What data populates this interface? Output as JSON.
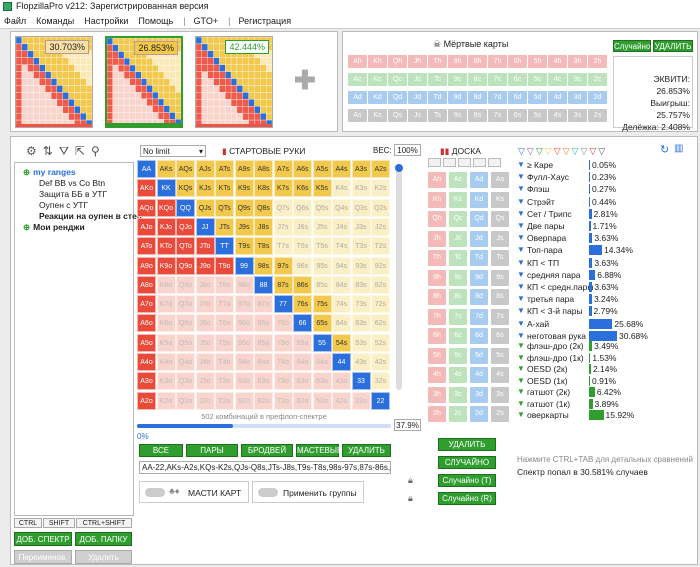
{
  "window": {
    "title": "FlopzillaPro v212: Зарегистрированная версия"
  },
  "menu": [
    "Файл",
    "Команды",
    "Настройки",
    "Помощь",
    "|",
    "GTO+",
    "|",
    "Регистрация"
  ],
  "mini_ranges": [
    {
      "pct": "30.703%",
      "fill": 0.307
    },
    {
      "pct": "26.853%",
      "fill": 0.269
    },
    {
      "pct": "42.444%",
      "fill": 0.424
    }
  ],
  "dead_cards": {
    "title": "Мёртвые карты",
    "random_label": "Случайно",
    "delete_label": "УДАЛИТЬ",
    "ranks": [
      "A",
      "K",
      "Q",
      "J",
      "T",
      "9",
      "8",
      "7",
      "6",
      "5",
      "4",
      "3",
      "2"
    ],
    "suits": [
      "h",
      "c",
      "d",
      "s"
    ]
  },
  "equity": {
    "ev_label": "ЭКВИТИ: 26.853%",
    "win_label": "Выигрыш: 25.757%",
    "split_label": "Делёжка: 2.408%"
  },
  "toolbar_icons": [
    "gear-icon",
    "sort-icon",
    "filter-icon",
    "export-icon",
    "search-icon"
  ],
  "tree": {
    "items": [
      {
        "label": "my ranges",
        "style": "root"
      },
      {
        "label": "Def BB vs Co Btn",
        "style": "child"
      },
      {
        "label": "Защита ББ в УТГ",
        "style": "child"
      },
      {
        "label": "Оупен с УТГ",
        "style": "child"
      },
      {
        "label": "Реакции на оупен в степ",
        "style": "bold"
      },
      {
        "label": "Мои ренджи",
        "style": "root2"
      }
    ],
    "tabs": [
      "CTRL",
      "SHIFT",
      "CTRL+SHIFT"
    ],
    "add_spectrum": "ДОБ. СПЕКТР",
    "add_folder": "ДОБ. ПАПКУ",
    "rename": "Переименов.",
    "delete": "Удалить"
  },
  "matrix": {
    "limit": "No limit",
    "title": "СТАРТОВЫЕ РУКИ",
    "weight_label": "ВЕС:",
    "weight_value": "100%",
    "combos_label": "502 комбинаций в префлоп-спектре",
    "slider_value": "37.9%",
    "zero_label": "0%",
    "ranks": [
      "A",
      "K",
      "Q",
      "J",
      "T",
      "9",
      "8",
      "7",
      "6",
      "5",
      "4",
      "3",
      "2"
    ],
    "selected": [
      "AA",
      "AKs",
      "AQs",
      "AJs",
      "ATs",
      "A9s",
      "A8s",
      "A7s",
      "A6s",
      "A5s",
      "A4s",
      "A3s",
      "A2s",
      "AKo",
      "KK",
      "KQs",
      "KJs",
      "KTs",
      "K9s",
      "K8s",
      "K7s",
      "K6s",
      "K5s",
      "AQo",
      "KQo",
      "QQ",
      "QJs",
      "QTs",
      "Q9s",
      "Q8s",
      "AJo",
      "KJo",
      "QJo",
      "JJ",
      "JTs",
      "J9s",
      "J8s",
      "ATo",
      "KTo",
      "QTo",
      "JTo",
      "TT",
      "T9s",
      "T8s",
      "A9o",
      "K9o",
      "Q9o",
      "J9o",
      "T9o",
      "99",
      "98s",
      "97s",
      "A8o",
      "88",
      "87s",
      "86s",
      "A7o",
      "77",
      "76s",
      "75s",
      "A6o",
      "66",
      "65s",
      "A5o",
      "55",
      "54s",
      "A4o",
      "44",
      "A3o",
      "33",
      "A2o",
      "22"
    ],
    "pairs_blue": [
      "AA",
      "KK",
      "QQ",
      "JJ",
      "TT",
      "99",
      "88",
      "77",
      "66",
      "55",
      "44",
      "33",
      "22"
    ]
  },
  "range_buttons": [
    "ВСЕ",
    "ПАРЫ",
    "БРОДВЕЙ",
    "МАСТЕВЫЕ",
    "УДАЛИТЬ"
  ],
  "range_text": "AA-22,AKs-A2s,KQs-K2s,QJs-Q8s,JTs-J8s,T9s-T8s,98s-97s,87s-86s,",
  "suits_toggle": "МАСТИ КАРТ",
  "groups_toggle": "Применить группы",
  "board": {
    "title": "ДОСКА",
    "delete": "УДАЛИТЬ",
    "random": "СЛУЧАЙНО",
    "random_t": "Случайно (Т)",
    "random_r": "Случайно (R)"
  },
  "stats": [
    {
      "label": "≥ Каре",
      "pct": "0.05%",
      "v": 0.05,
      "color": "#2a6fdb"
    },
    {
      "label": "Фулл-Хаус",
      "pct": "0.23%",
      "v": 0.23,
      "color": "#2a6fdb"
    },
    {
      "label": "Флэш",
      "pct": "0.27%",
      "v": 0.27,
      "color": "#2a6fdb"
    },
    {
      "label": "Стрэйт",
      "pct": "0.44%",
      "v": 0.44,
      "color": "#2a6fdb"
    },
    {
      "label": "Сет / Трипс",
      "pct": "2.81%",
      "v": 2.81,
      "color": "#2a6fdb"
    },
    {
      "label": "Две пары",
      "pct": "1.71%",
      "v": 1.71,
      "color": "#2a6fdb"
    },
    {
      "label": "Оверпара",
      "pct": "3.63%",
      "v": 3.63,
      "color": "#2a6fdb"
    },
    {
      "label": "Топ-пара",
      "pct": "14.34%",
      "v": 14.34,
      "color": "#2a6fdb"
    },
    {
      "label": "КП < ТП",
      "pct": "3.63%",
      "v": 3.63,
      "color": "#2a6fdb"
    },
    {
      "label": "средняя пара",
      "pct": "6.88%",
      "v": 6.88,
      "color": "#2a6fdb"
    },
    {
      "label": "КП < средн.пары",
      "pct": "3.63%",
      "v": 3.63,
      "color": "#2a6fdb"
    },
    {
      "label": "третья пара",
      "pct": "3.24%",
      "v": 3.24,
      "color": "#2a6fdb"
    },
    {
      "label": "КП < 3-й пары",
      "pct": "2.79%",
      "v": 2.79,
      "color": "#2a6fdb"
    },
    {
      "label": "А-хай",
      "pct": "25.68%",
      "v": 25.68,
      "color": "#2a6fdb"
    },
    {
      "label": "неготовая рука",
      "pct": "30.68%",
      "v": 30.68,
      "color": "#2a6fdb"
    },
    {
      "label": "флэш-дро (2к)",
      "pct": "3.49%",
      "v": 3.49,
      "color": "#2f9e2f"
    },
    {
      "label": "флэш-дро (1к)",
      "pct": "1.53%",
      "v": 1.53,
      "color": "#2f9e2f"
    },
    {
      "label": "OESD (2к)",
      "pct": "2.14%",
      "v": 2.14,
      "color": "#2f9e2f"
    },
    {
      "label": "OESD (1к)",
      "pct": "0.91%",
      "v": 0.91,
      "color": "#2f9e2f"
    },
    {
      "label": "гатшот (2к)",
      "pct": "6.42%",
      "v": 6.42,
      "color": "#2f9e2f"
    },
    {
      "label": "гатшот (1к)",
      "pct": "3.89%",
      "v": 3.89,
      "color": "#2f9e2f"
    },
    {
      "label": "оверкарты",
      "pct": "15.92%",
      "v": 15.92,
      "color": "#2f9e2f"
    }
  ],
  "hint": "Нажмите CTRL+TAB для детальных сравнений",
  "hit_label": "Спектр попал в 30.581% случаев"
}
